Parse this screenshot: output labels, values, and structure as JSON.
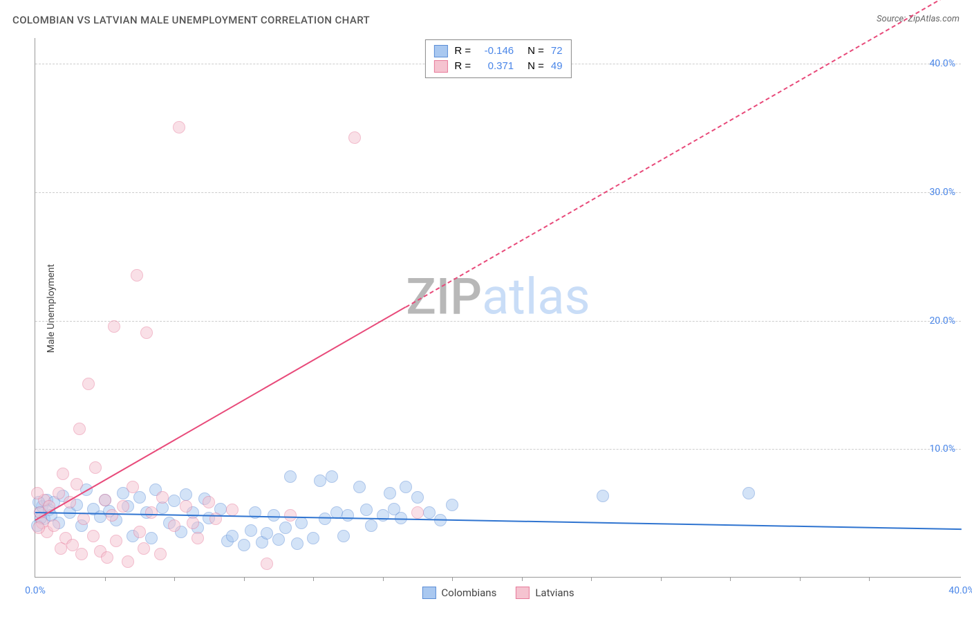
{
  "chart": {
    "type": "scatter",
    "title": "COLOMBIAN VS LATVIAN MALE UNEMPLOYMENT CORRELATION CHART",
    "source": "Source: ZipAtlas.com",
    "ylabel": "Male Unemployment",
    "xlim": [
      0,
      40
    ],
    "ylim": [
      0,
      42
    ],
    "y_ticks": [
      10,
      20,
      30,
      40
    ],
    "y_tick_labels": [
      "10.0%",
      "20.0%",
      "30.0%",
      "40.0%"
    ],
    "x_ticks": [
      0,
      20,
      40
    ],
    "x_tick_labels": [
      "0.0%",
      "",
      "40.0%"
    ],
    "x_minor_ticks": [
      3,
      6,
      9,
      12,
      15,
      18,
      21,
      24,
      27,
      30,
      33,
      36
    ],
    "background_color": "#ffffff",
    "grid_color": "#cccccc",
    "axis_color": "#999999",
    "tick_label_color": "#4a86e8",
    "marker_radius": 9,
    "marker_opacity": 0.5,
    "watermark": {
      "zip": "ZIP",
      "atlas": "atlas"
    },
    "series": [
      {
        "name": "Colombians",
        "color_fill": "#a9c8f0",
        "color_stroke": "#5b8dd6",
        "R": "-0.146",
        "N": "72",
        "trend": {
          "x1": 0,
          "y1": 5.1,
          "x2": 40,
          "y2": 3.8,
          "color": "#2f74d0",
          "width": 2.5,
          "dash": "solid"
        },
        "points": [
          [
            0.2,
            5.0
          ],
          [
            0.3,
            5.5
          ],
          [
            0.4,
            4.5
          ],
          [
            0.5,
            6.0
          ],
          [
            0.6,
            5.2
          ],
          [
            0.7,
            4.8
          ],
          [
            0.8,
            5.8
          ],
          [
            1.0,
            4.2
          ],
          [
            1.2,
            6.3
          ],
          [
            1.5,
            5.0
          ],
          [
            1.8,
            5.6
          ],
          [
            2.0,
            4.0
          ],
          [
            2.2,
            6.8
          ],
          [
            2.5,
            5.3
          ],
          [
            2.8,
            4.7
          ],
          [
            3.0,
            6.0
          ],
          [
            3.2,
            5.1
          ],
          [
            3.5,
            4.4
          ],
          [
            3.8,
            6.5
          ],
          [
            4.0,
            5.5
          ],
          [
            4.2,
            3.2
          ],
          [
            4.5,
            6.2
          ],
          [
            4.8,
            5.0
          ],
          [
            5.0,
            3.0
          ],
          [
            5.2,
            6.8
          ],
          [
            5.5,
            5.4
          ],
          [
            5.8,
            4.2
          ],
          [
            6.0,
            5.9
          ],
          [
            6.3,
            3.5
          ],
          [
            6.5,
            6.4
          ],
          [
            6.8,
            5.0
          ],
          [
            7.0,
            3.8
          ],
          [
            7.3,
            6.1
          ],
          [
            7.5,
            4.6
          ],
          [
            8.0,
            5.3
          ],
          [
            8.3,
            2.8
          ],
          [
            8.5,
            3.2
          ],
          [
            9.0,
            2.5
          ],
          [
            9.3,
            3.6
          ],
          [
            9.5,
            5.0
          ],
          [
            9.8,
            2.7
          ],
          [
            10.0,
            3.4
          ],
          [
            10.3,
            4.8
          ],
          [
            10.5,
            2.9
          ],
          [
            10.8,
            3.8
          ],
          [
            11.0,
            7.8
          ],
          [
            11.3,
            2.6
          ],
          [
            11.5,
            4.2
          ],
          [
            12.0,
            3.0
          ],
          [
            12.3,
            7.5
          ],
          [
            12.5,
            4.5
          ],
          [
            12.8,
            7.8
          ],
          [
            13.0,
            5.0
          ],
          [
            13.3,
            3.2
          ],
          [
            13.5,
            4.8
          ],
          [
            14.0,
            7.0
          ],
          [
            14.3,
            5.2
          ],
          [
            14.5,
            4.0
          ],
          [
            15.0,
            4.8
          ],
          [
            15.3,
            6.5
          ],
          [
            15.5,
            5.3
          ],
          [
            15.8,
            4.6
          ],
          [
            16.0,
            7.0
          ],
          [
            16.5,
            6.2
          ],
          [
            17.0,
            5.0
          ],
          [
            17.5,
            4.4
          ],
          [
            18.0,
            5.6
          ],
          [
            24.5,
            6.3
          ],
          [
            30.8,
            6.5
          ],
          [
            0.1,
            4.0
          ],
          [
            0.15,
            5.8
          ],
          [
            0.25,
            4.6
          ]
        ]
      },
      {
        "name": "Latvians",
        "color_fill": "#f5c3d0",
        "color_stroke": "#e77a9a",
        "R": "0.371",
        "N": "49",
        "trend": {
          "x1": 0,
          "y1": 4.5,
          "x2": 40,
          "y2": 46,
          "color": "#e84a7a",
          "width": 2,
          "dash": "solid_then_dash",
          "dash_switch_x": 16
        },
        "points": [
          [
            0.2,
            5.0
          ],
          [
            0.3,
            4.2
          ],
          [
            0.4,
            6.0
          ],
          [
            0.5,
            3.5
          ],
          [
            0.6,
            5.5
          ],
          [
            0.8,
            4.0
          ],
          [
            1.0,
            6.5
          ],
          [
            1.1,
            2.2
          ],
          [
            1.2,
            8.0
          ],
          [
            1.3,
            3.0
          ],
          [
            1.5,
            5.8
          ],
          [
            1.6,
            2.5
          ],
          [
            1.8,
            7.2
          ],
          [
            1.9,
            11.5
          ],
          [
            2.0,
            1.8
          ],
          [
            2.1,
            4.5
          ],
          [
            2.3,
            15.0
          ],
          [
            2.5,
            3.2
          ],
          [
            2.6,
            8.5
          ],
          [
            2.8,
            2.0
          ],
          [
            3.0,
            6.0
          ],
          [
            3.1,
            1.5
          ],
          [
            3.3,
            4.8
          ],
          [
            3.4,
            19.5
          ],
          [
            3.5,
            2.8
          ],
          [
            3.8,
            5.5
          ],
          [
            4.0,
            1.2
          ],
          [
            4.2,
            7.0
          ],
          [
            4.4,
            23.5
          ],
          [
            4.5,
            3.5
          ],
          [
            4.7,
            2.2
          ],
          [
            4.8,
            19.0
          ],
          [
            5.0,
            5.0
          ],
          [
            5.4,
            1.8
          ],
          [
            5.5,
            6.2
          ],
          [
            6.0,
            4.0
          ],
          [
            6.2,
            35.0
          ],
          [
            6.5,
            5.5
          ],
          [
            6.8,
            4.2
          ],
          [
            7.0,
            3.0
          ],
          [
            7.5,
            5.8
          ],
          [
            7.8,
            4.5
          ],
          [
            8.5,
            5.2
          ],
          [
            10.0,
            1.0
          ],
          [
            11.0,
            4.8
          ],
          [
            13.8,
            34.2
          ],
          [
            16.5,
            5.0
          ],
          [
            0.1,
            6.5
          ],
          [
            0.15,
            3.8
          ]
        ]
      }
    ],
    "legend_top": {
      "r_label": "R =",
      "n_label": "N ="
    },
    "legend_bottom": [
      {
        "label": "Colombians",
        "fill": "#a9c8f0",
        "stroke": "#5b8dd6"
      },
      {
        "label": "Latvians",
        "fill": "#f5c3d0",
        "stroke": "#e77a9a"
      }
    ]
  }
}
